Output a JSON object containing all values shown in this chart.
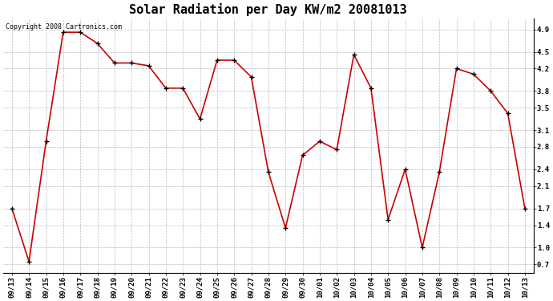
{
  "title": "Solar Radiation per Day KW/m2 20081013",
  "copyright": "Copyright 2008 Cartronics.com",
  "labels": [
    "09/13",
    "09/14",
    "09/15",
    "09/16",
    "09/17",
    "09/18",
    "09/19",
    "09/20",
    "09/21",
    "09/22",
    "09/23",
    "09/24",
    "09/25",
    "09/26",
    "09/27",
    "09/28",
    "09/29",
    "09/30",
    "10/01",
    "10/02",
    "10/03",
    "10/04",
    "10/05",
    "10/06",
    "10/07",
    "10/08",
    "10/09",
    "10/10",
    "10/11",
    "10/12",
    "10/13"
  ],
  "values": [
    1.7,
    0.75,
    2.9,
    4.85,
    4.85,
    4.65,
    4.3,
    4.3,
    4.25,
    3.85,
    3.85,
    3.3,
    4.35,
    4.35,
    4.05,
    2.35,
    1.35,
    2.65,
    2.9,
    2.75,
    4.45,
    3.85,
    1.5,
    2.4,
    1.0,
    2.35,
    4.2,
    4.1,
    3.8,
    3.4,
    1.7
  ],
  "line_color": "#cc0000",
  "marker": "+",
  "marker_color": "#000000",
  "marker_size": 4,
  "marker_linewidth": 1.0,
  "background_color": "#ffffff",
  "plot_background": "#ffffff",
  "grid_color": "#bbbbbb",
  "ylim": [
    0.55,
    5.1
  ],
  "yticks": [
    0.7,
    1.0,
    1.4,
    1.7,
    2.1,
    2.4,
    2.8,
    3.1,
    3.5,
    3.8,
    4.2,
    4.5,
    4.9
  ],
  "title_fontsize": 11,
  "tick_fontsize": 6.5,
  "copyright_fontsize": 6
}
